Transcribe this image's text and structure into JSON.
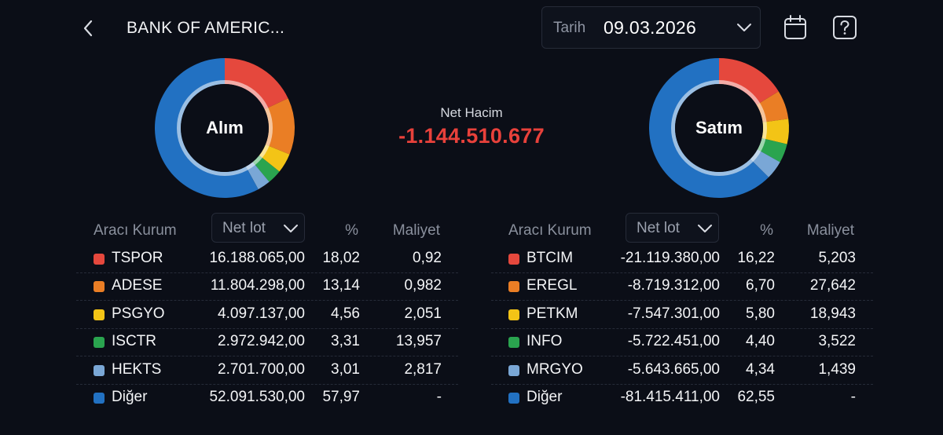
{
  "header": {
    "title": "BANK OF AMERIC...",
    "date_label": "Tarih",
    "date_value": "09.03.2026"
  },
  "net": {
    "label": "Net Hacim",
    "value": "-1.144.510.677"
  },
  "colors": {
    "red": "#e5483d",
    "orange": "#ea7e25",
    "yellow": "#f3c416",
    "green": "#2aa44f",
    "lightblue": "#7aa7d6",
    "blue": "#2271c2",
    "negative": "#e8413b"
  },
  "icons": {
    "back": "chevron-left-icon",
    "date_dropdown": "chevron-down-icon",
    "calendar": "calendar-icon",
    "help": "help-icon"
  },
  "buy": {
    "donut_label": "Alım",
    "headers": {
      "broker": "Aracı Kurum",
      "dropdown": "Net lot",
      "percent": "%",
      "cost": "Maliyet"
    },
    "rows": [
      {
        "name": "TSPOR",
        "lot": "16.188.065,00",
        "pct": "18,02",
        "cost": "0,92",
        "pct_value": 18.02,
        "color": "#e5483d"
      },
      {
        "name": "ADESE",
        "lot": "11.804.298,00",
        "pct": "13,14",
        "cost": "0,982",
        "pct_value": 13.14,
        "color": "#ea7e25"
      },
      {
        "name": "PSGYO",
        "lot": "4.097.137,00",
        "pct": "4,56",
        "cost": "2,051",
        "pct_value": 4.56,
        "color": "#f3c416"
      },
      {
        "name": "ISCTR",
        "lot": "2.972.942,00",
        "pct": "3,31",
        "cost": "13,957",
        "pct_value": 3.31,
        "color": "#2aa44f"
      },
      {
        "name": "HEKTS",
        "lot": "2.701.700,00",
        "pct": "3,01",
        "cost": "2,817",
        "pct_value": 3.01,
        "color": "#7aa7d6"
      },
      {
        "name": "Diğer",
        "lot": "52.091.530,00",
        "pct": "57,97",
        "cost": "-",
        "pct_value": 57.97,
        "color": "#2271c2"
      }
    ]
  },
  "sell": {
    "donut_label": "Satım",
    "headers": {
      "broker": "Aracı Kurum",
      "dropdown": "Net lot",
      "percent": "%",
      "cost": "Maliyet"
    },
    "rows": [
      {
        "name": "BTCIM",
        "lot": "-21.119.380,00",
        "pct": "16,22",
        "cost": "5,203",
        "pct_value": 16.22,
        "color": "#e5483d"
      },
      {
        "name": "EREGL",
        "lot": "-8.719.312,00",
        "pct": "6,70",
        "cost": "27,642",
        "pct_value": 6.7,
        "color": "#ea7e25"
      },
      {
        "name": "PETKM",
        "lot": "-7.547.301,00",
        "pct": "5,80",
        "cost": "18,943",
        "pct_value": 5.8,
        "color": "#f3c416"
      },
      {
        "name": "INFO",
        "lot": "-5.722.451,00",
        "pct": "4,40",
        "cost": "3,522",
        "pct_value": 4.4,
        "color": "#2aa44f"
      },
      {
        "name": "MRGYO",
        "lot": "-5.643.665,00",
        "pct": "4,34",
        "cost": "1,439",
        "pct_value": 4.34,
        "color": "#7aa7d6"
      },
      {
        "name": "Diğer",
        "lot": "-81.415.411,00",
        "pct": "62,55",
        "cost": "-",
        "pct_value": 62.55,
        "color": "#2271c2"
      }
    ]
  }
}
